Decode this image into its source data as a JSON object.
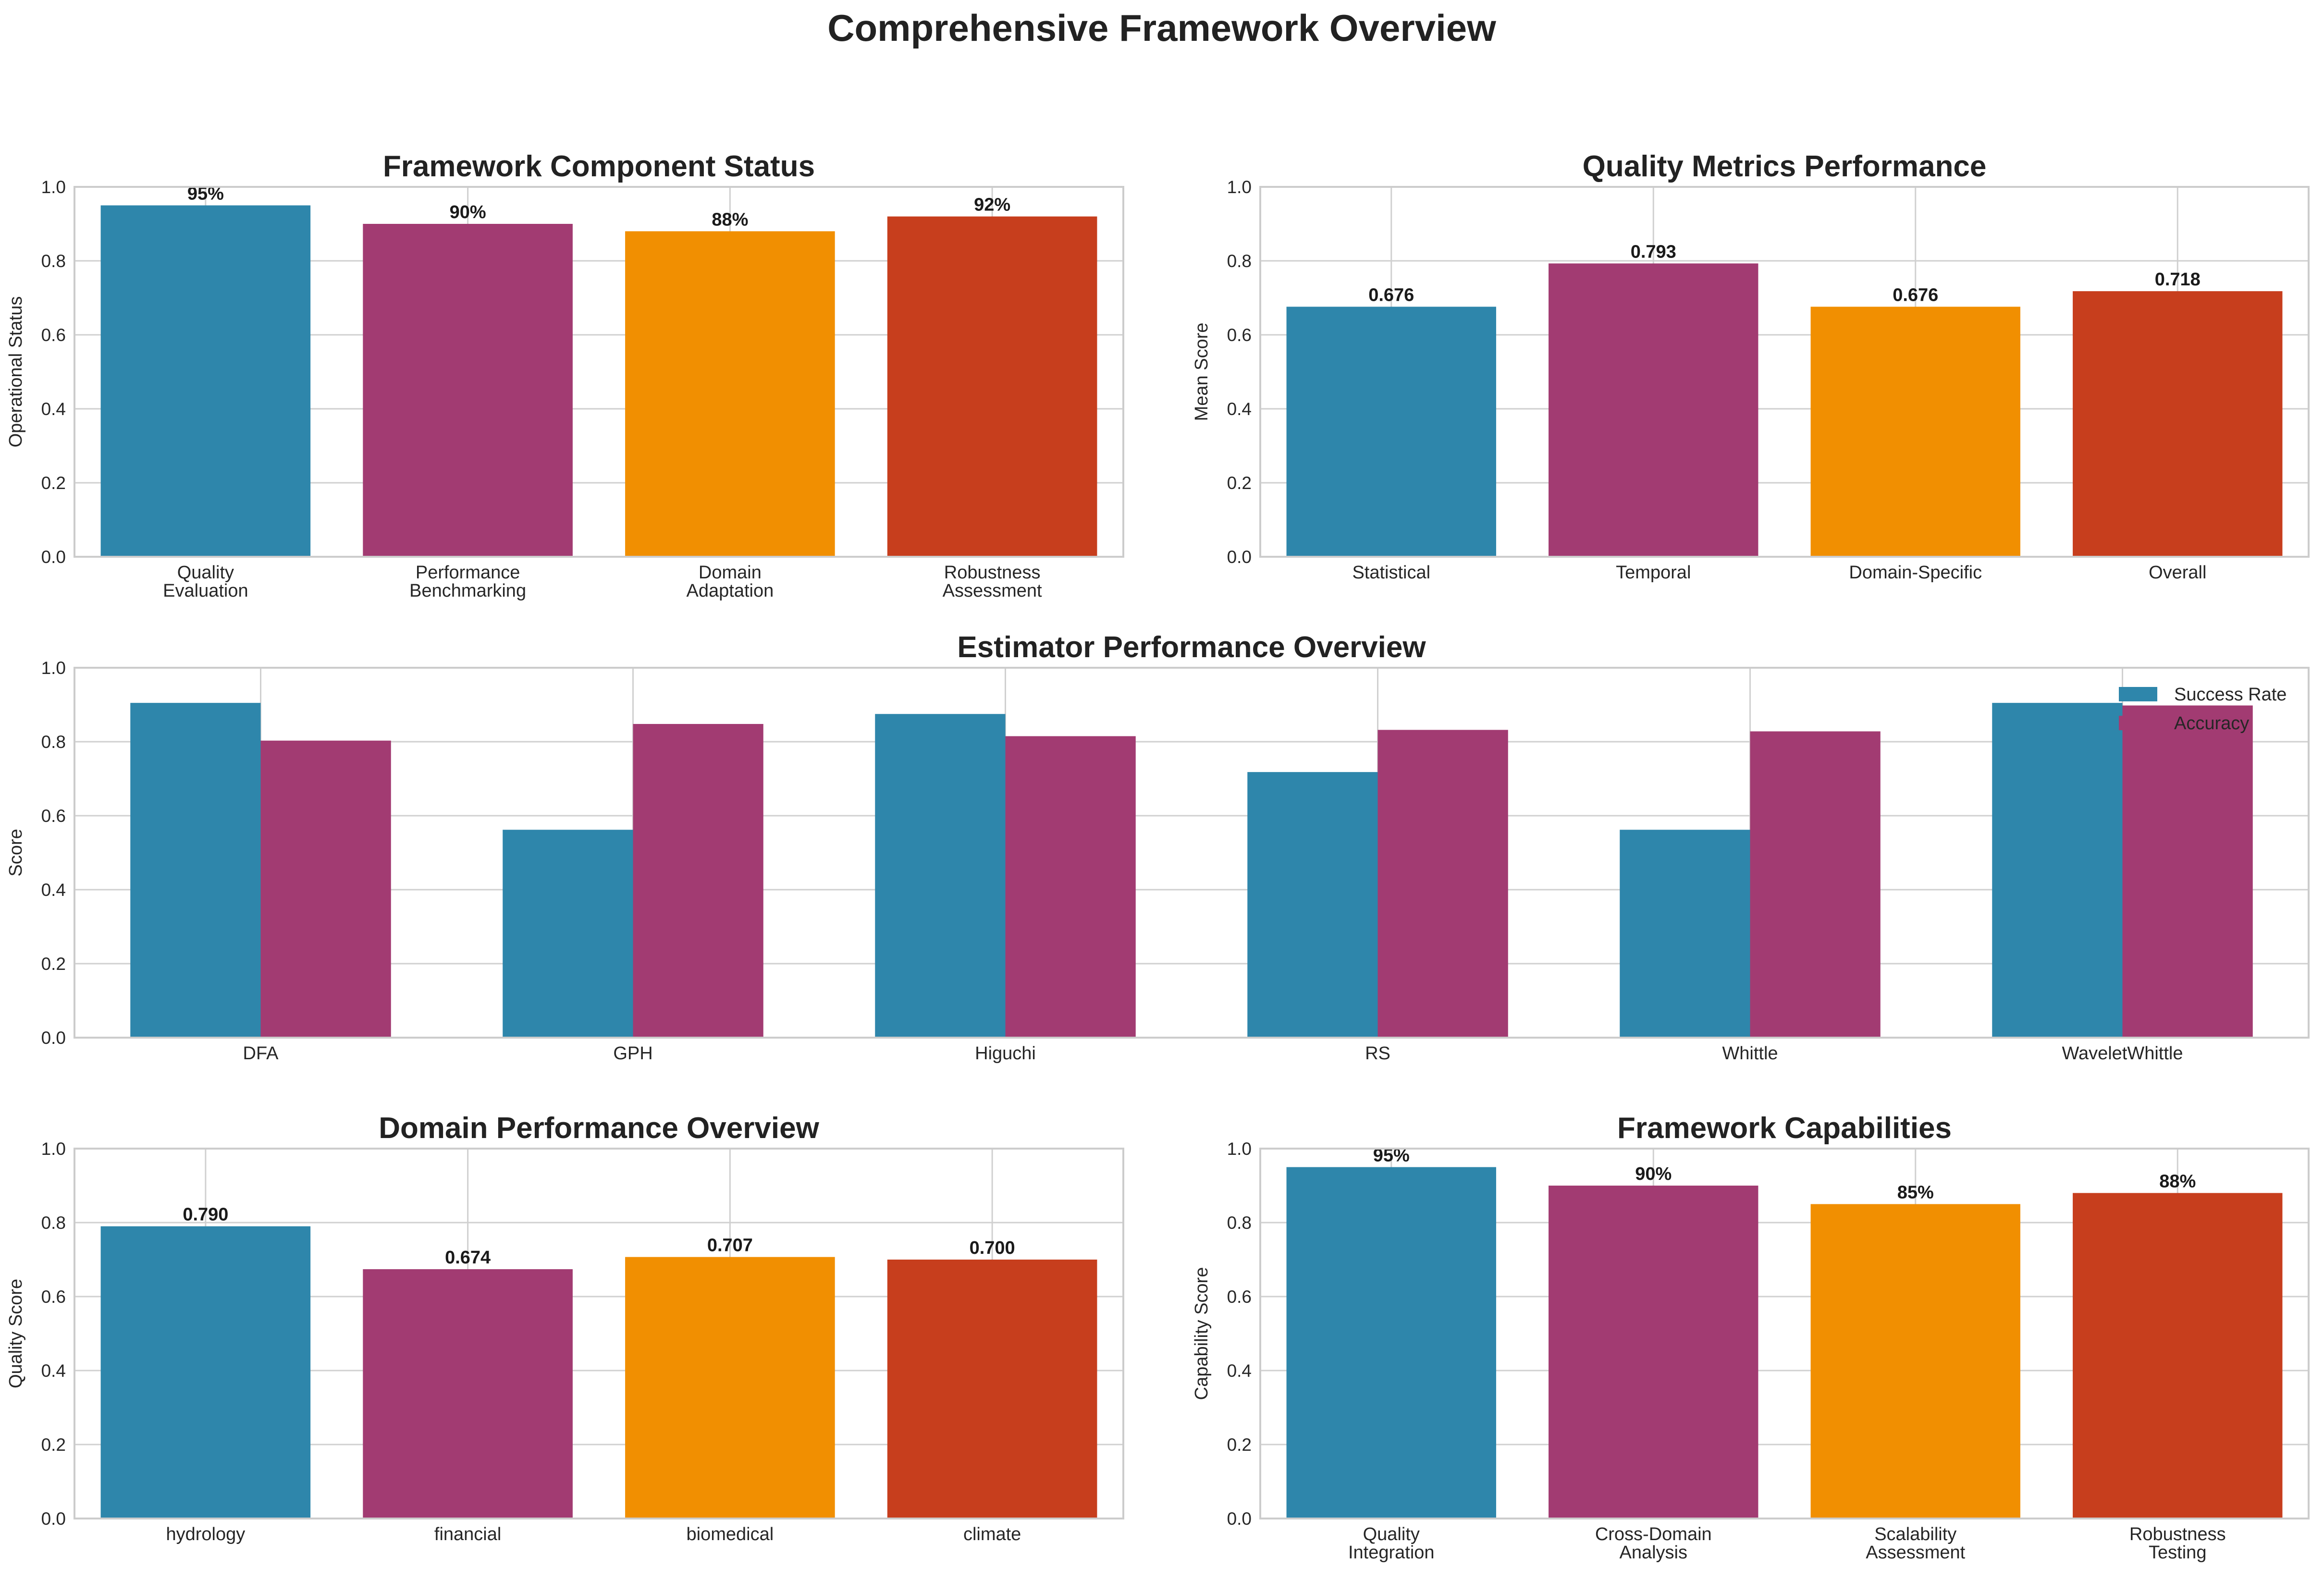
{
  "figure_title": "Comprehensive Framework Overview",
  "colors": {
    "blue": "#2E86AB",
    "purple": "#A23B72",
    "orange": "#F18F01",
    "red": "#C73E1D",
    "grid": "#d0d0d0",
    "spine": "#cccccc"
  },
  "chart_data": [
    {
      "id": "component-status",
      "type": "bar",
      "title": "Framework Component Status",
      "xlabel": "",
      "ylabel": "Operational Status",
      "ylim": [
        0,
        1
      ],
      "yticks": [
        "0.0",
        "0.2",
        "0.4",
        "0.6",
        "0.8",
        "1.0"
      ],
      "grid": true,
      "categories": [
        "Quality\nEvaluation",
        "Performance\nBenchmarking",
        "Domain\nAdaptation",
        "Robustness\nAssessment"
      ],
      "values": [
        0.95,
        0.9,
        0.88,
        0.92
      ],
      "value_labels": [
        "95%",
        "90%",
        "88%",
        "92%"
      ],
      "bar_colors": [
        "#2E86AB",
        "#A23B72",
        "#F18F01",
        "#C73E1D"
      ]
    },
    {
      "id": "quality-metrics",
      "type": "bar",
      "title": "Quality Metrics Performance",
      "xlabel": "",
      "ylabel": "Mean Score",
      "ylim": [
        0,
        1
      ],
      "yticks": [
        "0.0",
        "0.2",
        "0.4",
        "0.6",
        "0.8",
        "1.0"
      ],
      "grid": true,
      "categories": [
        "Statistical",
        "Temporal",
        "Domain-Specific",
        "Overall"
      ],
      "values": [
        0.676,
        0.793,
        0.676,
        0.718
      ],
      "value_labels": [
        "0.676",
        "0.793",
        "0.676",
        "0.718"
      ],
      "bar_colors": [
        "#2E86AB",
        "#A23B72",
        "#F18F01",
        "#C73E1D"
      ]
    },
    {
      "id": "estimator-performance",
      "type": "bar",
      "title": "Estimator Performance Overview",
      "xlabel": "",
      "ylabel": "Score",
      "ylim": [
        0,
        1
      ],
      "yticks": [
        "0.0",
        "0.2",
        "0.4",
        "0.6",
        "0.8",
        "1.0"
      ],
      "grid": true,
      "legend": "top-right",
      "categories": [
        "DFA",
        "GPH",
        "Higuchi",
        "RS",
        "Whittle",
        "WaveletWhittle"
      ],
      "series": [
        {
          "name": "Success Rate",
          "color": "#2E86AB",
          "values": [
            0.905,
            0.562,
            0.875,
            0.718,
            0.562,
            0.905
          ]
        },
        {
          "name": "Accuracy",
          "color": "#A23B72",
          "values": [
            0.803,
            0.848,
            0.815,
            0.832,
            0.828,
            0.898
          ]
        }
      ]
    },
    {
      "id": "domain-performance",
      "type": "bar",
      "title": "Domain Performance Overview",
      "xlabel": "",
      "ylabel": "Quality Score",
      "ylim": [
        0,
        1
      ],
      "yticks": [
        "0.0",
        "0.2",
        "0.4",
        "0.6",
        "0.8",
        "1.0"
      ],
      "grid": true,
      "categories": [
        "hydrology",
        "financial",
        "biomedical",
        "climate"
      ],
      "values": [
        0.79,
        0.674,
        0.707,
        0.7
      ],
      "value_labels": [
        "0.790",
        "0.674",
        "0.707",
        "0.700"
      ],
      "bar_colors": [
        "#2E86AB",
        "#A23B72",
        "#F18F01",
        "#C73E1D"
      ]
    },
    {
      "id": "capabilities",
      "type": "bar",
      "title": "Framework Capabilities",
      "xlabel": "",
      "ylabel": "Capability Score",
      "ylim": [
        0,
        1
      ],
      "yticks": [
        "0.0",
        "0.2",
        "0.4",
        "0.6",
        "0.8",
        "1.0"
      ],
      "grid": true,
      "categories": [
        "Quality\nIntegration",
        "Cross-Domain\nAnalysis",
        "Scalability\nAssessment",
        "Robustness\nTesting"
      ],
      "values": [
        0.95,
        0.9,
        0.85,
        0.88
      ],
      "value_labels": [
        "95%",
        "90%",
        "85%",
        "88%"
      ],
      "bar_colors": [
        "#2E86AB",
        "#A23B72",
        "#F18F01",
        "#C73E1D"
      ]
    }
  ]
}
